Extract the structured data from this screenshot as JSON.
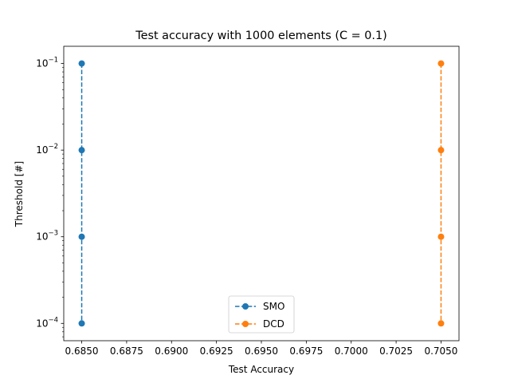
{
  "chart_data": {
    "type": "line",
    "title": "Test accuracy with 1000 elements (C = 0.1)",
    "xlabel": "Test Accuracy",
    "ylabel": "Threshold [#]",
    "xlim": [
      0.684,
      0.706
    ],
    "ylim": [
      6.31e-05,
      0.158
    ],
    "yscale": "log",
    "grid": false,
    "legend_position": "lower center",
    "x_ticks": [
      0.685,
      0.6875,
      0.69,
      0.6925,
      0.695,
      0.6975,
      0.7,
      0.7025,
      0.705
    ],
    "x_tick_labels": [
      "0.6850",
      "0.6875",
      "0.6900",
      "0.6925",
      "0.6950",
      "0.6975",
      "0.7000",
      "0.7025",
      "0.7050"
    ],
    "y_ticks": [
      {
        "value": 0.1,
        "base": "10",
        "exp": "−1"
      },
      {
        "value": 0.01,
        "base": "10",
        "exp": "−2"
      },
      {
        "value": 0.001,
        "base": "10",
        "exp": "−3"
      },
      {
        "value": 0.0001,
        "base": "10",
        "exp": "−4"
      }
    ],
    "series": [
      {
        "name": "SMO",
        "color": "#1f77b4",
        "linestyle": "dashed",
        "marker": "circle",
        "x": [
          0.685,
          0.685,
          0.685,
          0.685
        ],
        "y": [
          0.1,
          0.01,
          0.001,
          0.0001
        ]
      },
      {
        "name": "DCD",
        "color": "#ff7f0e",
        "linestyle": "dashed",
        "marker": "circle",
        "x": [
          0.705,
          0.705,
          0.705,
          0.705
        ],
        "y": [
          0.1,
          0.01,
          0.001,
          0.0001
        ]
      }
    ]
  }
}
